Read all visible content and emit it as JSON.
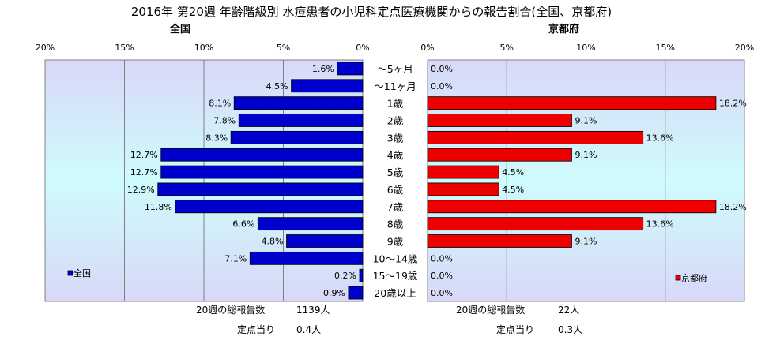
{
  "title": "2016年 第20週 年齢階級別 水痘患者の小児科定点医療機関からの報告割合(全国、京都府)",
  "age_groups": [
    "～5ヶ月",
    "～11ヶ月",
    "1歳",
    "2歳",
    "3歳",
    "4歳",
    "5歳",
    "6歳",
    "7歳",
    "8歳",
    "9歳",
    "10～14歳",
    "15～19歳",
    "20歳以上"
  ],
  "colors": {
    "national": "#0000cc",
    "kyoto": "#ee0000",
    "plot_top": "#d8d8f8",
    "plot_mid": "#cffcfc"
  },
  "chart_data": [
    {
      "type": "bar",
      "orientation": "horizontal-left",
      "title": "全国",
      "series": [
        {
          "name": "全国",
          "values": [
            1.6,
            4.5,
            8.1,
            7.8,
            8.3,
            12.7,
            12.7,
            12.9,
            11.8,
            6.6,
            4.8,
            7.1,
            0.2,
            0.9
          ]
        }
      ],
      "value_labels": [
        "1.6%",
        "4.5%",
        "8.1%",
        "7.8%",
        "8.3%",
        "12.7%",
        "12.7%",
        "12.9%",
        "11.8%",
        "6.6%",
        "4.8%",
        "7.1%",
        "0.2%",
        "0.9%"
      ],
      "xlim": [
        0,
        20
      ],
      "ticks": [
        "0%",
        "5%",
        "10%",
        "15%",
        "20%"
      ],
      "legend_position": "bottom-left",
      "grid": true
    },
    {
      "type": "bar",
      "orientation": "horizontal-right",
      "title": "京都府",
      "series": [
        {
          "name": "京都府",
          "values": [
            0.0,
            0.0,
            18.2,
            9.1,
            13.6,
            9.1,
            4.5,
            4.5,
            18.2,
            13.6,
            9.1,
            0.0,
            0.0,
            0.0
          ]
        }
      ],
      "value_labels": [
        "0.0%",
        "0.0%",
        "18.2%",
        "9.1%",
        "13.6%",
        "9.1%",
        "4.5%",
        "4.5%",
        "18.2%",
        "13.6%",
        "9.1%",
        "0.0%",
        "0.0%",
        "0.0%"
      ],
      "xlim": [
        0,
        20
      ],
      "ticks": [
        "0%",
        "5%",
        "10%",
        "15%",
        "20%"
      ],
      "legend_position": "bottom-right",
      "grid": true
    }
  ],
  "footer": {
    "national_total_label": "20週の総報告数",
    "national_total_value": "1139人",
    "national_per_label": "定点当り",
    "national_per_value": "0.4人",
    "kyoto_total_label": "20週の総報告数",
    "kyoto_total_value": "22人",
    "kyoto_per_label": "定点当り",
    "kyoto_per_value": "0.3人"
  }
}
